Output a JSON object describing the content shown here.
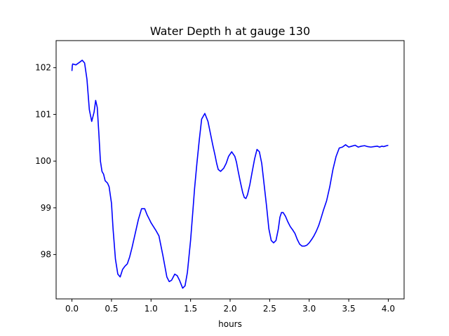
{
  "chart_data": {
    "type": "line",
    "title": "Water Depth h at gauge 130",
    "xlabel": "hours",
    "ylabel": "",
    "xlim": [
      -0.2,
      4.2
    ],
    "ylim": [
      97.05,
      102.58
    ],
    "x_ticks": [
      0.0,
      0.5,
      1.0,
      1.5,
      2.0,
      2.5,
      3.0,
      3.5,
      4.0
    ],
    "x_tick_labels": [
      "0.0",
      "0.5",
      "1.0",
      "1.5",
      "2.0",
      "2.5",
      "3.0",
      "3.5",
      "4.0"
    ],
    "y_ticks": [
      98,
      99,
      100,
      101,
      102
    ],
    "y_tick_labels": [
      "98",
      "99",
      "100",
      "101",
      "102"
    ],
    "grid": false,
    "line_color": "#0000ff",
    "series": [
      {
        "x": [
          0.0,
          0.005,
          0.01,
          0.05,
          0.1,
          0.13,
          0.16,
          0.19,
          0.22,
          0.25,
          0.28,
          0.3,
          0.32,
          0.34,
          0.36,
          0.38,
          0.4,
          0.42,
          0.45,
          0.47,
          0.5,
          0.52,
          0.55,
          0.58,
          0.61,
          0.64,
          0.67,
          0.7,
          0.73,
          0.76,
          0.8,
          0.84,
          0.88,
          0.92,
          0.95,
          0.98,
          1.0,
          1.03,
          1.06,
          1.1,
          1.15,
          1.2,
          1.23,
          1.26,
          1.3,
          1.33,
          1.36,
          1.4,
          1.43,
          1.46,
          1.5,
          1.53,
          1.55,
          1.58,
          1.61,
          1.64,
          1.68,
          1.72,
          1.75,
          1.78,
          1.81,
          1.83,
          1.85,
          1.88,
          1.92,
          1.95,
          1.98,
          2.02,
          2.06,
          2.08,
          2.1,
          2.13,
          2.16,
          2.18,
          2.2,
          2.22,
          2.25,
          2.28,
          2.31,
          2.34,
          2.37,
          2.4,
          2.43,
          2.46,
          2.49,
          2.52,
          2.55,
          2.58,
          2.61,
          2.63,
          2.65,
          2.67,
          2.7,
          2.73,
          2.76,
          2.79,
          2.82,
          2.85,
          2.88,
          2.91,
          2.94,
          2.97,
          3.0,
          3.03,
          3.06,
          3.09,
          3.12,
          3.15,
          3.18,
          3.22,
          3.26,
          3.3,
          3.34,
          3.38,
          3.42,
          3.46,
          3.5,
          3.54,
          3.58,
          3.62,
          3.66,
          3.7,
          3.74,
          3.78,
          3.82,
          3.86,
          3.89,
          3.92,
          3.94,
          3.96,
          3.98,
          4.0
        ],
        "y": [
          101.93,
          102.05,
          102.08,
          102.06,
          102.12,
          102.16,
          102.1,
          101.75,
          101.1,
          100.85,
          101.05,
          101.3,
          101.15,
          100.6,
          100.0,
          99.78,
          99.72,
          99.58,
          99.53,
          99.45,
          99.1,
          98.55,
          97.9,
          97.58,
          97.52,
          97.68,
          97.75,
          97.8,
          97.95,
          98.15,
          98.45,
          98.75,
          98.98,
          98.98,
          98.85,
          98.75,
          98.68,
          98.6,
          98.52,
          98.4,
          97.98,
          97.52,
          97.42,
          97.45,
          97.58,
          97.55,
          97.45,
          97.28,
          97.33,
          97.62,
          98.3,
          98.95,
          99.4,
          99.95,
          100.45,
          100.9,
          101.02,
          100.85,
          100.6,
          100.35,
          100.12,
          99.95,
          99.82,
          99.78,
          99.85,
          99.95,
          100.1,
          100.2,
          100.1,
          99.98,
          99.8,
          99.55,
          99.32,
          99.22,
          99.2,
          99.28,
          99.5,
          99.78,
          100.05,
          100.25,
          100.2,
          99.95,
          99.5,
          99.05,
          98.55,
          98.3,
          98.25,
          98.3,
          98.55,
          98.8,
          98.9,
          98.9,
          98.82,
          98.7,
          98.6,
          98.53,
          98.45,
          98.32,
          98.22,
          98.18,
          98.18,
          98.2,
          98.25,
          98.32,
          98.4,
          98.5,
          98.62,
          98.78,
          98.95,
          99.15,
          99.45,
          99.82,
          100.1,
          100.28,
          100.3,
          100.35,
          100.3,
          100.32,
          100.34,
          100.3,
          100.32,
          100.33,
          100.31,
          100.3,
          100.31,
          100.32,
          100.3,
          100.32,
          100.31,
          100.32,
          100.33,
          100.34
        ]
      }
    ]
  }
}
